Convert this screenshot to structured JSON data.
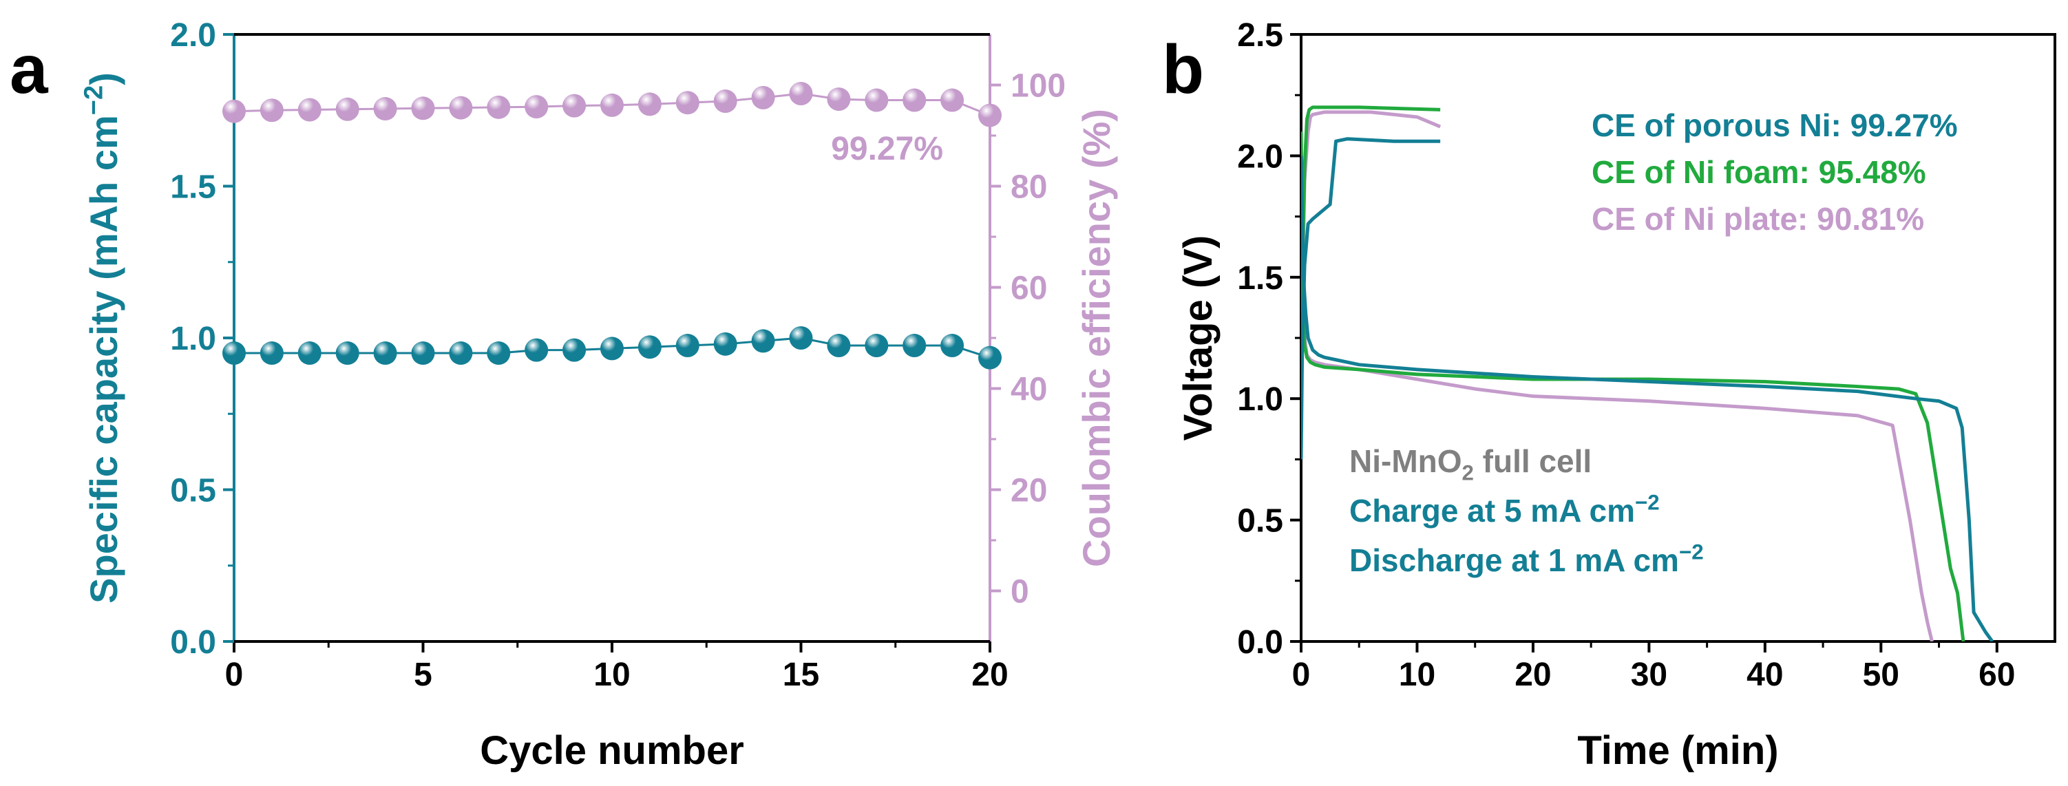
{
  "colors": {
    "teal": "#137F95",
    "lilac": "#C49BCB",
    "green": "#21AA3E",
    "gray": "#808080",
    "black": "#000000"
  },
  "chart_data": [
    {
      "panel_label": "a",
      "type": "scatter",
      "xlabel": "Cycle number",
      "xlim": [
        0,
        20
      ],
      "xticks": [
        0,
        5,
        10,
        15,
        20
      ],
      "ylabel": {
        "pre": "Specific capacity (mAh cm",
        "sup": "−2",
        "post": ")"
      },
      "ylim": [
        0,
        2.0
      ],
      "yticks": [
        "0.0",
        "0.5",
        "1.0",
        "1.5",
        "2.0"
      ],
      "y2label": "Coulombic efficiency (%)",
      "y2lim": [
        -10,
        110
      ],
      "y2ticks": [
        0,
        20,
        40,
        60,
        80,
        100
      ],
      "grid": false,
      "annotation": "99.27%",
      "series": [
        {
          "axis": "left",
          "color": "#137F95",
          "x": [
            0,
            1,
            2,
            3,
            4,
            5,
            6,
            7,
            8,
            9,
            10,
            11,
            12,
            13,
            14,
            15,
            16,
            17,
            18,
            19,
            20
          ],
          "values": [
            0.95,
            0.95,
            0.95,
            0.95,
            0.95,
            0.95,
            0.95,
            0.95,
            0.96,
            0.96,
            0.965,
            0.97,
            0.975,
            0.98,
            0.99,
            1.0,
            0.975,
            0.975,
            0.975,
            0.975,
            0.935
          ]
        },
        {
          "axis": "right",
          "color": "#C49BCB",
          "x": [
            0,
            1,
            2,
            3,
            4,
            5,
            6,
            7,
            8,
            9,
            10,
            11,
            12,
            13,
            14,
            15,
            16,
            17,
            18,
            19,
            20
          ],
          "values": [
            94.8,
            95.0,
            95.1,
            95.2,
            95.3,
            95.4,
            95.5,
            95.6,
            95.7,
            95.9,
            96.0,
            96.2,
            96.5,
            96.8,
            97.5,
            98.3,
            97.2,
            97.0,
            97.0,
            97.0,
            94.0
          ]
        }
      ]
    },
    {
      "panel_label": "b",
      "type": "line",
      "xlabel": "Time (min)",
      "xlim": [
        0,
        65
      ],
      "xticks": [
        0,
        10,
        20,
        30,
        40,
        50,
        60
      ],
      "ylabel": "Voltage (V)",
      "ylim": [
        0,
        2.5
      ],
      "yticks": [
        "0.0",
        "0.5",
        "1.0",
        "1.5",
        "2.0",
        "2.5"
      ],
      "grid": false,
      "legend": [
        "CE of porous Ni: 99.27%",
        "CE of Ni foam: 95.48%",
        "CE of Ni plate: 90.81%"
      ],
      "legend_position": "top-right",
      "notes": [
        {
          "pre": "Ni-MnO",
          "sub": "2",
          "post": " full cell",
          "color": "#808080"
        },
        {
          "pre": "Charge at 5 mA cm",
          "sup": "−2",
          "post": "",
          "color": "#137F95"
        },
        {
          "pre": "Discharge at 1 mA cm",
          "sup": "−2",
          "post": "",
          "color": "#137F95"
        }
      ],
      "series": [
        {
          "color": "#C49BCB",
          "charge": {
            "x": [
              0,
              0.1,
              0.3,
              0.6,
              0.8,
              1.0,
              2.0,
              6.0,
              10.0,
              12.0
            ],
            "y": [
              0.95,
              1.4,
              1.9,
              2.1,
              2.16,
              2.17,
              2.18,
              2.18,
              2.16,
              2.12
            ]
          },
          "discharge": {
            "x": [
              0,
              0.15,
              0.3,
              0.5,
              0.8,
              1.2,
              2.0,
              5.0,
              10.0,
              15.0,
              20.0,
              30.0,
              40.0,
              48.0,
              51.0,
              52.5,
              53.5,
              54.0,
              54.4
            ],
            "y": [
              2.0,
              1.5,
              1.25,
              1.18,
              1.16,
              1.15,
              1.14,
              1.12,
              1.08,
              1.04,
              1.01,
              0.99,
              0.96,
              0.93,
              0.89,
              0.5,
              0.2,
              0.08,
              0.0
            ]
          }
        },
        {
          "color": "#21AA3E",
          "charge": {
            "x": [
              0,
              0.1,
              0.3,
              0.5,
              0.7,
              1.0,
              5.0,
              12.0
            ],
            "y": [
              0.85,
              1.5,
              1.95,
              2.15,
              2.19,
              2.2,
              2.2,
              2.19
            ]
          },
          "discharge": {
            "x": [
              0,
              0.15,
              0.3,
              0.5,
              0.8,
              1.2,
              2.0,
              5.0,
              10.0,
              20.0,
              30.0,
              40.0,
              48.0,
              51.5,
              53.0,
              54.0,
              55.0,
              56.0,
              56.6,
              57.1
            ],
            "y": [
              2.1,
              1.45,
              1.22,
              1.17,
              1.15,
              1.14,
              1.13,
              1.12,
              1.1,
              1.08,
              1.08,
              1.07,
              1.05,
              1.04,
              1.02,
              0.9,
              0.6,
              0.3,
              0.2,
              0.0
            ]
          }
        },
        {
          "color": "#137F95",
          "charge": {
            "x": [
              0,
              0.1,
              0.3,
              0.6,
              1.0,
              1.5,
              2.0,
              2.5,
              3.0,
              4.0,
              8.0,
              12.0
            ],
            "y": [
              0.75,
              1.2,
              1.55,
              1.72,
              1.74,
              1.76,
              1.78,
              1.8,
              2.06,
              2.07,
              2.06,
              2.06
            ]
          },
          "discharge": {
            "x": [
              0,
              0.2,
              0.4,
              0.6,
              1.0,
              1.5,
              2.0,
              3.0,
              5.0,
              10.0,
              20.0,
              30.0,
              40.0,
              48.0,
              53.0,
              55.0,
              56.5,
              57.0,
              57.6,
              58.0,
              59.0,
              59.6
            ],
            "y": [
              2.0,
              1.5,
              1.35,
              1.25,
              1.2,
              1.18,
              1.17,
              1.16,
              1.14,
              1.12,
              1.09,
              1.07,
              1.05,
              1.03,
              1.0,
              0.99,
              0.96,
              0.88,
              0.5,
              0.12,
              0.04,
              0.0
            ]
          }
        }
      ]
    }
  ]
}
